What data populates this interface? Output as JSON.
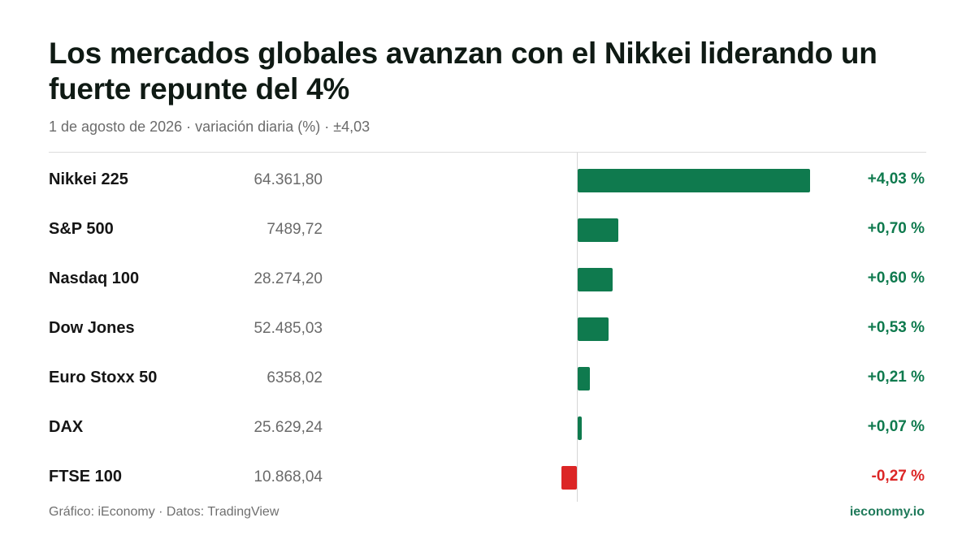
{
  "header": {
    "title": "Los mercados globales avanzan con el Nikkei liderando un fuerte repunte del 4%",
    "subtitle": "1 de agosto de 2026 · variación diaria (%) · ±4,03"
  },
  "footer": {
    "source": "Gráfico: iEconomy · Datos: TradingView",
    "brand": "ieconomy.io"
  },
  "colors": {
    "positive": "#0f7a4e",
    "negative": "#dc2626"
  },
  "chart_data": {
    "type": "bar",
    "orientation": "horizontal",
    "title": "Los mercados globales avanzan con el Nikkei liderando un fuerte repunte del 4%",
    "subtitle": "1 de agosto de 2026 · variación diaria (%) · ±4,03",
    "xlim": [
      -4.03,
      4.03
    ],
    "categories": [
      "Nikkei 225",
      "S&P 500",
      "Nasdaq 100",
      "Dow Jones",
      "Euro Stoxx 50",
      "DAX",
      "FTSE 100"
    ],
    "prices": [
      "64.361,80",
      "7489,72",
      "28.274,20",
      "52.485,03",
      "6358,02",
      "25.629,24",
      "10.868,04"
    ],
    "values": [
      4.03,
      0.7,
      0.6,
      0.53,
      0.21,
      0.07,
      -0.27
    ],
    "value_labels": [
      "+4,03 %",
      "+0,70 %",
      "+0,60 %",
      "+0,53 %",
      "+0,21 %",
      "+0,07 %",
      "-0,27 %"
    ]
  }
}
